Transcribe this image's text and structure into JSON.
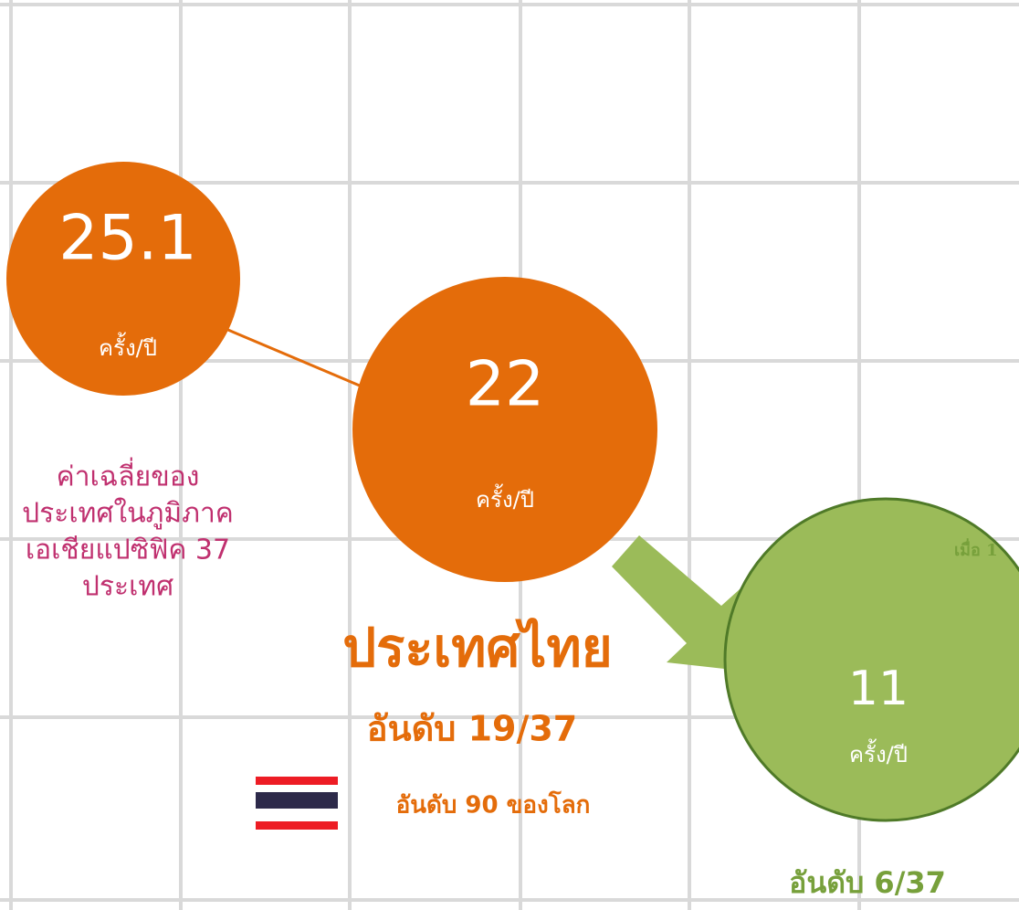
{
  "circles": [
    {
      "value": "25.1",
      "unit": "ครั้ง/ปี"
    },
    {
      "value": "22",
      "unit": "ครั้ง/ปี"
    },
    {
      "value": "11",
      "unit": "ครั้ง/ปี"
    }
  ],
  "region_note": [
    "ค่าเฉลี่ยของ",
    "ประเทศในภูมิภาค",
    "เอเชียแปซิฟิค 37",
    "ประเทศ"
  ],
  "country": "ประเทศไทย",
  "region_rank": "อันดับ 19/37",
  "world_rank": "อันดับ 90 ของโลก",
  "target_rank": "อันดับ 6/37",
  "side_note": "เมื่อ 1"
}
